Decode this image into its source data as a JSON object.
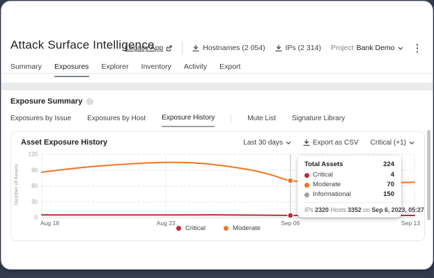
{
  "header": {
    "title": "Attack Surface Intelligence",
    "legacy_link": "Legacy App",
    "hostnames_label": "Hostnames (2 054)",
    "ips_label": "IPs (2 314)",
    "project_label": "Project",
    "project_value": "Bank Demo",
    "tabs": [
      {
        "label": "Summary"
      },
      {
        "label": "Exposures"
      },
      {
        "label": "Explorer"
      },
      {
        "label": "Inventory"
      },
      {
        "label": "Activity"
      },
      {
        "label": "Export"
      }
    ]
  },
  "section": {
    "title": "Exposure Summary",
    "subtabs": [
      {
        "label": "Exposures by Issue"
      },
      {
        "label": "Exposures by Host"
      },
      {
        "label": "Exposure History"
      },
      {
        "label": "Mute List"
      },
      {
        "label": "Signature Library"
      }
    ]
  },
  "card": {
    "title": "Asset Exposure History",
    "range_selector": "Last 30 days",
    "export_label": "Export as CSV",
    "filter_label": "Critical (+1)"
  },
  "chart_data": {
    "type": "line",
    "title": "Asset Exposure History",
    "xlabel": "",
    "ylabel": "Number of Assets",
    "ylim": [
      0,
      120
    ],
    "yticks": [
      0,
      30,
      60,
      90,
      120
    ],
    "grid": "horizontal-dashed",
    "legend_position": "bottom-center",
    "xticks": [
      {
        "f": 0,
        "label": "Aug 18"
      },
      {
        "f": 0.333,
        "label": "Aug 23"
      },
      {
        "f": 0.667,
        "label": "Sep 06"
      },
      {
        "f": 1,
        "label": "Sep 13"
      }
    ],
    "series": [
      {
        "name": "Critical",
        "color": "#c02a33",
        "points": [
          [
            0,
            5
          ],
          [
            0.15,
            5
          ],
          [
            0.33,
            5
          ],
          [
            0.5,
            5
          ],
          [
            0.667,
            4
          ],
          [
            0.85,
            4
          ],
          [
            1,
            4
          ]
        ]
      },
      {
        "name": "Moderate",
        "color": "#ee7524",
        "points": [
          [
            0,
            86
          ],
          [
            0.07,
            92
          ],
          [
            0.14,
            97
          ],
          [
            0.22,
            101
          ],
          [
            0.3,
            104
          ],
          [
            0.37,
            104.5
          ],
          [
            0.44,
            102
          ],
          [
            0.51,
            96
          ],
          [
            0.57,
            89
          ],
          [
            0.62,
            80
          ],
          [
            0.667,
            70
          ],
          [
            0.73,
            67
          ],
          [
            0.81,
            65.5
          ],
          [
            0.9,
            65.5
          ],
          [
            1,
            67
          ]
        ]
      }
    ],
    "hover": {
      "f": 0.667,
      "values": {
        "Critical": 4,
        "Moderate": 70
      }
    }
  },
  "tooltip": {
    "total_label": "Total Assets",
    "total_value": "224",
    "rows": [
      {
        "label": "Critical",
        "value": "4",
        "color": "#c02a33"
      },
      {
        "label": "Moderate",
        "value": "70",
        "color": "#ee7524"
      },
      {
        "label": "Informational",
        "value": "150",
        "color": "#9aa0a6"
      }
    ],
    "footer": {
      "ips_label": "IPs",
      "ips": "2320",
      "hosts_label": "Hosts",
      "hosts": "3352",
      "on_label": "on",
      "date": "Sep 6, 2023, 05:27"
    }
  },
  "legend": [
    {
      "label": "Critical",
      "color": "#c02a33"
    },
    {
      "label": "Moderate",
      "color": "#ee7524"
    }
  ],
  "info_icon_glyph": "?"
}
